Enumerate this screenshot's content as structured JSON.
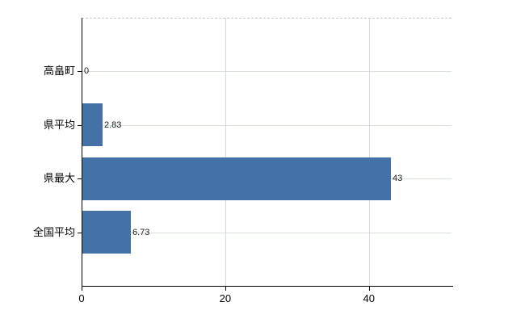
{
  "chart_data": {
    "type": "bar",
    "orientation": "horizontal",
    "title": "",
    "xlabel": "",
    "ylabel": "",
    "categories": [
      "高畠町",
      "県平均",
      "県最大",
      "全国平均"
    ],
    "values": [
      0,
      2.83,
      43,
      6.73
    ],
    "value_labels": [
      "0",
      "2.83",
      "43",
      "6.73"
    ],
    "xlim": [
      0,
      51.5
    ],
    "xticks": [
      0,
      20,
      40
    ],
    "xtick_labels": [
      "0",
      "20",
      "40"
    ],
    "grid": "on",
    "legend": "none",
    "bar_color": "#4472a7",
    "gridline_h_color": "#d9e2d9",
    "gridline_v_color": "#d8d8d8",
    "border_top_color": "#c8c8c8",
    "axis_color": "#000000"
  }
}
